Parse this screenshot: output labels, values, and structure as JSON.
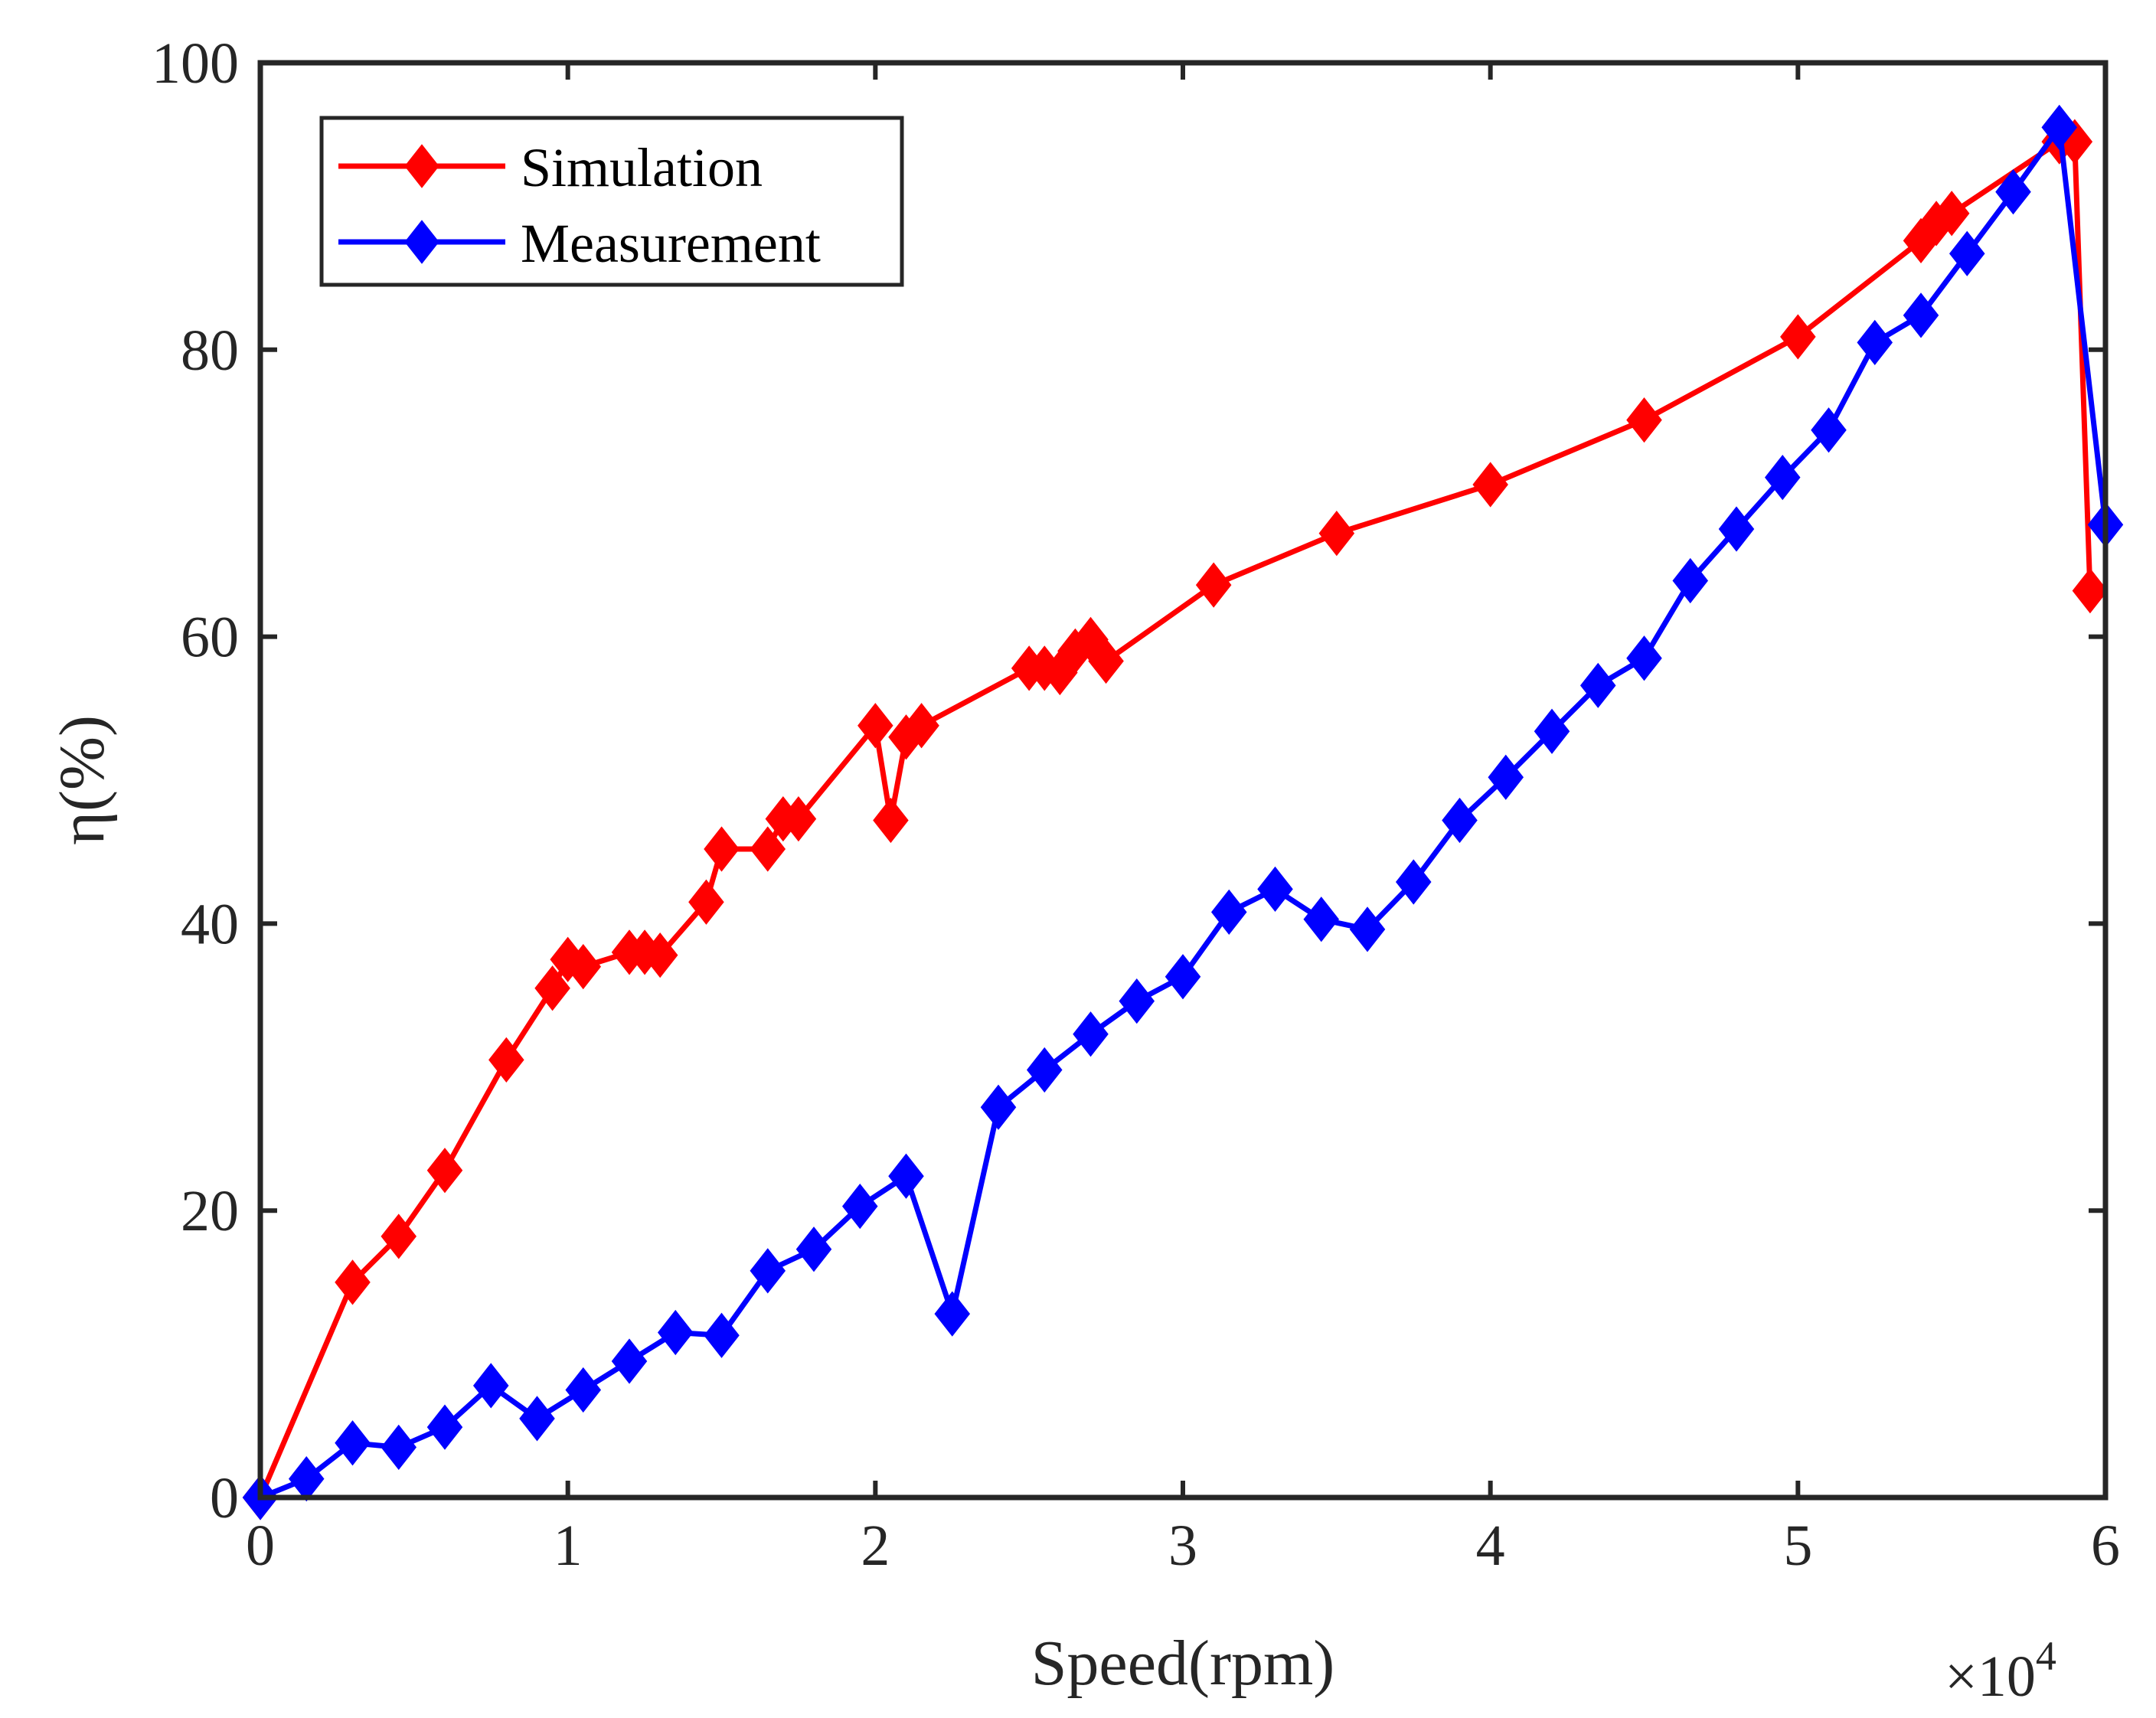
{
  "chart_data": {
    "type": "line",
    "title": "",
    "xlabel": "Speed(rpm)",
    "ylabel": "η(%)",
    "x_exponent_label": {
      "prefix": "×10",
      "power": "4"
    },
    "xlim": [
      0,
      6
    ],
    "ylim": [
      0,
      100
    ],
    "xticks": [
      0,
      1,
      2,
      3,
      4,
      5,
      6
    ],
    "xtick_labels": [
      "0",
      "1",
      "2",
      "3",
      "4",
      "5",
      "6"
    ],
    "yticks": [
      0,
      20,
      40,
      60,
      80,
      100
    ],
    "ytick_labels": [
      "0",
      "20",
      "40",
      "60",
      "80",
      "100"
    ],
    "grid": false,
    "legend_position": "top-left",
    "series": [
      {
        "name": "Simulation",
        "color": "#ff0000",
        "marker": "diamond",
        "x": [
          0,
          0.3,
          0.45,
          0.6,
          0.8,
          0.95,
          1.0,
          1.05,
          1.2,
          1.25,
          1.3,
          1.45,
          1.5,
          1.65,
          1.7,
          1.75,
          2.0,
          2.05,
          2.1,
          2.15,
          2.5,
          2.55,
          2.6,
          2.65,
          2.7,
          2.75,
          3.1,
          3.5,
          4.0,
          4.5,
          5.0,
          5.4,
          5.45,
          5.5,
          5.85,
          5.9,
          5.95
        ],
        "y": [
          0,
          15,
          18.2,
          22.8,
          30.5,
          35.5,
          37.5,
          37,
          38,
          38,
          37.8,
          41.5,
          45.2,
          45.2,
          47.3,
          47.3,
          53.8,
          47.2,
          53,
          53.8,
          57.8,
          57.8,
          57.5,
          59,
          59.8,
          58.3,
          63.6,
          67.2,
          70.6,
          75.1,
          80.9,
          87.6,
          88.8,
          89.5,
          94.5,
          94.5,
          63.2
        ]
      },
      {
        "name": "Measurement",
        "color": "#0000ff",
        "marker": "diamond",
        "x": [
          0,
          0.15,
          0.3,
          0.45,
          0.6,
          0.75,
          0.9,
          1.05,
          1.2,
          1.35,
          1.5,
          1.65,
          1.8,
          1.95,
          2.1,
          2.25,
          2.4,
          2.55,
          2.7,
          2.85,
          3.0,
          3.15,
          3.3,
          3.45,
          3.6,
          3.75,
          3.9,
          4.05,
          4.2,
          4.35,
          4.5,
          4.65,
          4.8,
          4.95,
          5.1,
          5.25,
          5.4,
          5.55,
          5.7,
          5.85,
          6.0
        ],
        "y": [
          0,
          1.3,
          3.8,
          3.5,
          4.9,
          7.8,
          5.5,
          7.5,
          9.5,
          11.5,
          11.3,
          15.8,
          17.3,
          20.3,
          22.4,
          12.8,
          27.2,
          29.8,
          32.3,
          34.6,
          36.3,
          40.8,
          42.4,
          40.3,
          39.6,
          42.9,
          47.2,
          50.2,
          53.4,
          56.6,
          58.5,
          63.9,
          67.5,
          71.1,
          74.4,
          80.5,
          82.4,
          86.7,
          91,
          95.5,
          67.8
        ]
      }
    ]
  }
}
